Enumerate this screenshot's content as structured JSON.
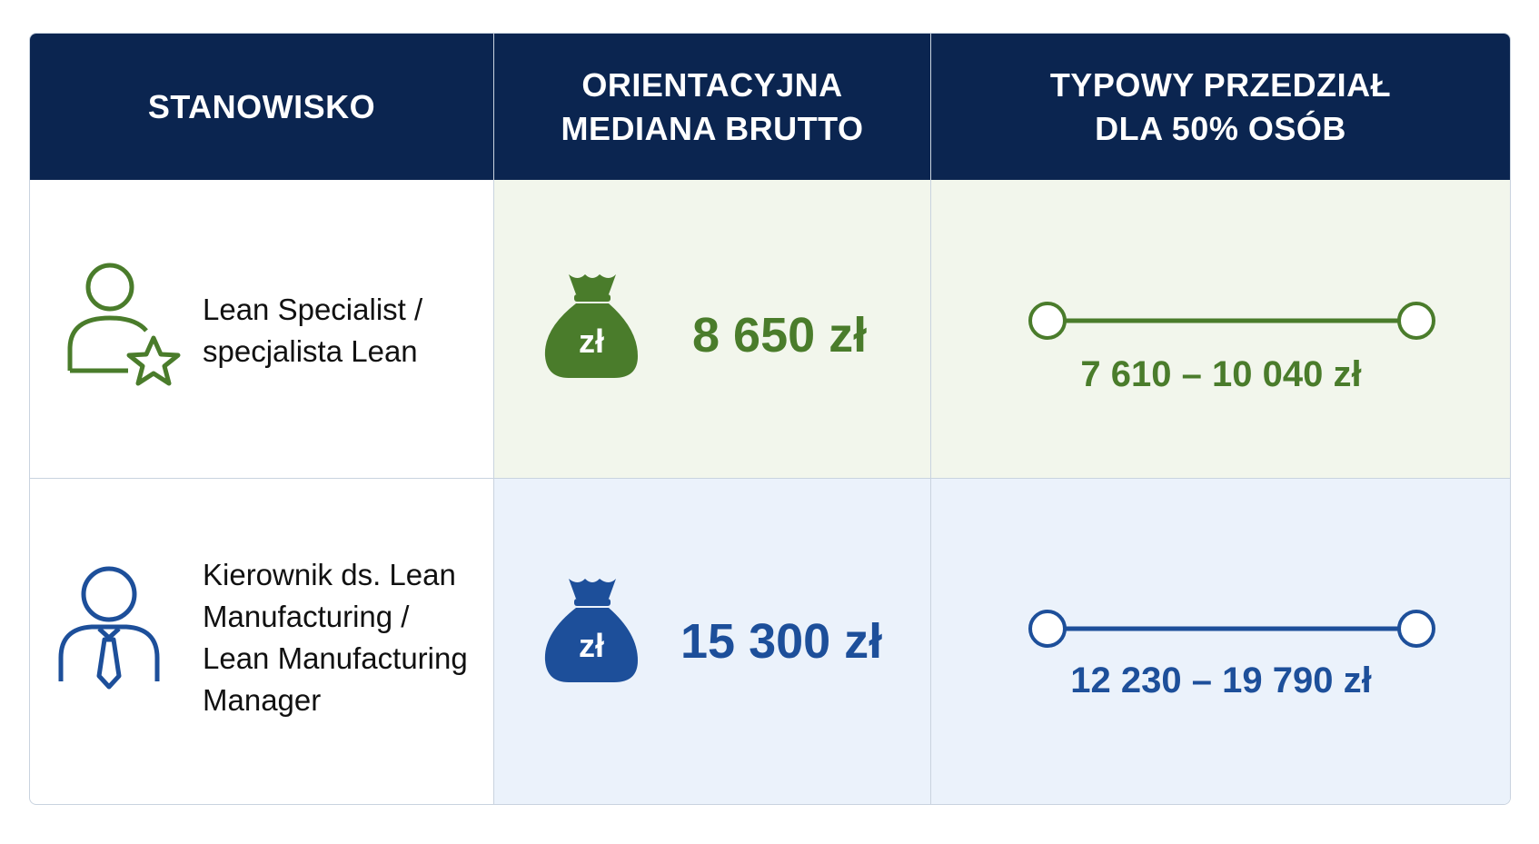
{
  "table": {
    "header": [
      "STANOWISKO",
      "ORIENTACYJNA MEDIANA BRUTTO",
      "TYPOWY PRZEDZIAŁ DLA 50% OSÓB"
    ],
    "rows": [
      {
        "position": "Lean Specialist / specjalista Lean",
        "icon_label": "zł",
        "median": "8 650 zł",
        "range": "7 610 – 10 040 zł"
      },
      {
        "position": "Kierownik ds. Lean Manufacturing / Lean Manufacturing Manager",
        "icon_label": "zł",
        "median": "15 300 zł",
        "range": "12 230 – 19 790 zł"
      }
    ]
  }
}
